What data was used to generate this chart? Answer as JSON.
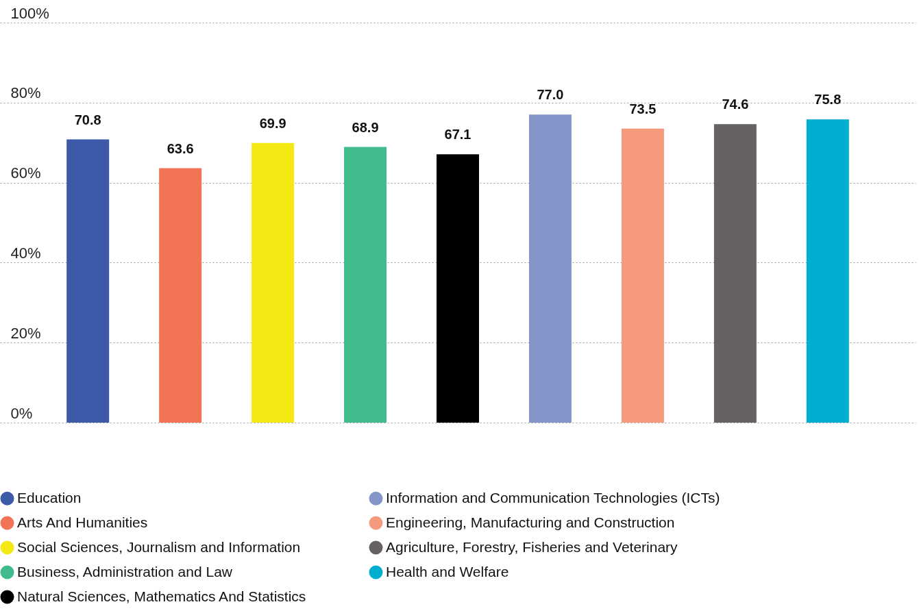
{
  "chart_data": {
    "type": "bar",
    "categories": [
      null,
      null,
      null,
      null,
      null,
      null,
      null,
      null,
      null
    ],
    "series": [
      {
        "name": "Education",
        "color": "#3d5aa8",
        "values": [
          70.8,
          null,
          null,
          null,
          null,
          null,
          null,
          null,
          null
        ],
        "value_labels": [
          "70.8",
          null,
          null,
          null,
          null,
          null,
          null,
          null,
          null
        ]
      },
      {
        "name": "Arts And Humanities",
        "color": "#f27455",
        "values": [
          null,
          63.6,
          null,
          null,
          null,
          null,
          null,
          null,
          null
        ],
        "value_labels": [
          null,
          "63.6",
          null,
          null,
          null,
          null,
          null,
          null,
          null
        ]
      },
      {
        "name": "Social Sciences, Journalism and Information",
        "color": "#f5e914",
        "values": [
          null,
          null,
          69.9,
          null,
          null,
          null,
          null,
          null,
          null
        ],
        "value_labels": [
          null,
          null,
          "69.9",
          null,
          null,
          null,
          null,
          null,
          null
        ]
      },
      {
        "name": "Business, Administration and Law",
        "color": "#42bb8c",
        "values": [
          null,
          null,
          null,
          68.9,
          null,
          null,
          null,
          null,
          null
        ],
        "value_labels": [
          null,
          null,
          null,
          "68.9",
          null,
          null,
          null,
          null,
          null
        ]
      },
      {
        "name": "Natural Sciences, Mathematics And Statistics",
        "color": "#000000",
        "values": [
          null,
          null,
          null,
          null,
          67.1,
          null,
          null,
          null,
          null
        ],
        "value_labels": [
          null,
          null,
          null,
          null,
          "67.1",
          null,
          null,
          null,
          null
        ]
      },
      {
        "name": "Information and Communication Technologies (ICTs)",
        "color": "#8494c9",
        "values": [
          null,
          null,
          null,
          null,
          null,
          77.0,
          null,
          null,
          null
        ],
        "value_labels": [
          null,
          null,
          null,
          null,
          null,
          "77.0",
          null,
          null,
          null
        ]
      },
      {
        "name": "Engineering, Manufacturing and Construction",
        "color": "#f59a7c",
        "values": [
          null,
          null,
          null,
          null,
          null,
          null,
          73.5,
          null,
          null
        ],
        "value_labels": [
          null,
          null,
          null,
          null,
          null,
          null,
          "73.5",
          null,
          null
        ]
      },
      {
        "name": "Agriculture, Forestry, Fisheries and Veterinary",
        "color": "#666261",
        "values": [
          null,
          null,
          null,
          null,
          null,
          null,
          null,
          74.6,
          null
        ],
        "value_labels": [
          null,
          null,
          null,
          null,
          null,
          null,
          null,
          "74.6",
          null
        ]
      },
      {
        "name": "Health and Welfare",
        "color": "#00aecf",
        "values": [
          null,
          null,
          null,
          null,
          null,
          null,
          null,
          null,
          75.8
        ],
        "value_labels": [
          null,
          null,
          null,
          null,
          null,
          null,
          null,
          null,
          "75.8"
        ]
      }
    ],
    "ylim": [
      0,
      100
    ],
    "yticks": [
      {
        "value": 0,
        "label": "0%"
      },
      {
        "value": 20,
        "label": "20%"
      },
      {
        "value": 40,
        "label": "40%"
      },
      {
        "value": 60,
        "label": "60%"
      },
      {
        "value": 80,
        "label": "80%"
      },
      {
        "value": 100,
        "label": "100%"
      }
    ],
    "grid": "y",
    "legend": "bottom",
    "tick_labels": "y"
  }
}
